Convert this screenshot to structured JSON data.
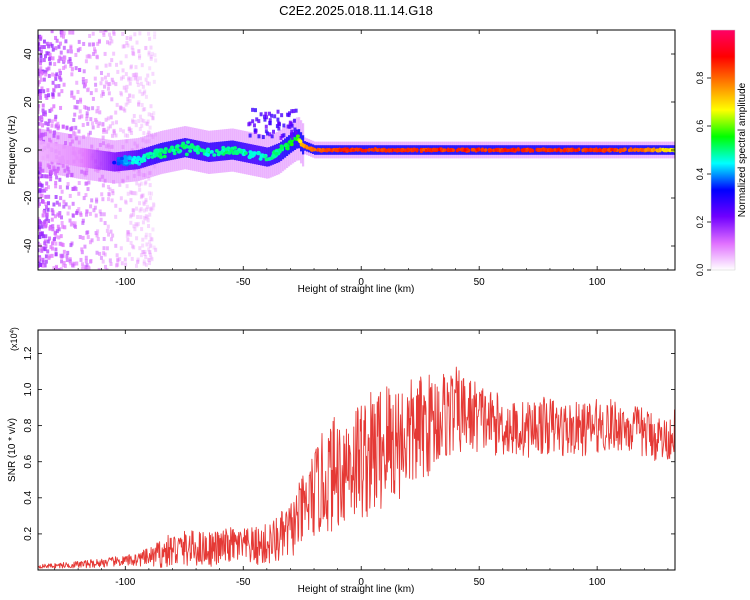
{
  "figure": {
    "title": "C2E2.2025.018.11.14.G18"
  },
  "chart_data": [
    {
      "type": "heatmap",
      "xlabel": "Height of straight line (km)",
      "ylabel": "Frequency (Hz)",
      "xlim": [
        -137,
        133
      ],
      "ylim": [
        -50,
        50
      ],
      "xticks": [
        -100,
        -50,
        0,
        50,
        100
      ],
      "yticks": [
        -40,
        -20,
        0,
        20,
        40
      ],
      "grid": false,
      "legend": "none",
      "colorbar": {
        "label": "Normalized spectral amplitude",
        "range": [
          0,
          1
        ],
        "ticks": [
          0.0,
          0.2,
          0.4,
          0.6,
          0.8
        ],
        "tick_labels": [
          "0.0",
          "0.2",
          "0.4",
          "0.6",
          "0.8"
        ],
        "colors": [
          "#ffffff",
          "#e070ff",
          "#7000ff",
          "#0000ff",
          "#00ffff",
          "#00ff00",
          "#ffff00",
          "#ff8000",
          "#ff0000",
          "#ff0066"
        ]
      },
      "ridge": {
        "x": [
          -137,
          -120,
          -105,
          -95,
          -85,
          -75,
          -65,
          -55,
          -45,
          -40,
          -35,
          -30,
          -27,
          -25,
          -20,
          -10,
          0,
          10,
          20,
          40,
          60,
          80,
          100,
          120,
          133
        ],
        "f": [
          0,
          -3,
          -5,
          -4,
          -1,
          1,
          -1,
          0,
          -2,
          -3,
          -1,
          3,
          5,
          2,
          0,
          0,
          0,
          0,
          0,
          0,
          0,
          0,
          0,
          0,
          0
        ],
        "amplitude": [
          0.1,
          0.15,
          0.35,
          0.45,
          0.5,
          0.5,
          0.48,
          0.5,
          0.45,
          0.48,
          0.5,
          0.55,
          0.55,
          0.75,
          0.8,
          0.85,
          0.85,
          0.85,
          0.85,
          0.85,
          0.85,
          0.85,
          0.85,
          0.8,
          0.65
        ]
      }
    },
    {
      "type": "line",
      "xlabel": "Height of straight line (km)",
      "ylabel": "SNR (10 * v/v)",
      "y_multiplier": "(x10",
      "y_multiplier_exp": "4",
      "y_multiplier_close": ")",
      "xlim": [
        -137,
        133
      ],
      "ylim": [
        0,
        1.33
      ],
      "xticks": [
        -100,
        -50,
        0,
        50,
        100
      ],
      "yticks": [
        0.2,
        0.4,
        0.6,
        0.8,
        1.0,
        1.2
      ],
      "ytick_labels": [
        "0.2",
        "0.4",
        "0.6",
        "0.8",
        "1.0",
        "1.2"
      ],
      "grid": false,
      "legend": "none",
      "color": "#e53935",
      "series": [
        {
          "x": [
            -137,
            -120,
            -100,
            -90,
            -85,
            -80,
            -75,
            -70,
            -65,
            -60,
            -55,
            -50,
            -45,
            -40,
            -35,
            -30,
            -25,
            -20,
            -15,
            -10,
            -5,
            0,
            5,
            10,
            15,
            20,
            25,
            30,
            35,
            40,
            45,
            50,
            55,
            60,
            65,
            70,
            75,
            80,
            85,
            90,
            95,
            100,
            105,
            110,
            115,
            120,
            125,
            130,
            133
          ],
          "mean": [
            0.02,
            0.03,
            0.05,
            0.07,
            0.09,
            0.11,
            0.12,
            0.12,
            0.12,
            0.12,
            0.14,
            0.13,
            0.13,
            0.14,
            0.17,
            0.22,
            0.32,
            0.42,
            0.5,
            0.55,
            0.6,
            0.62,
            0.64,
            0.7,
            0.72,
            0.74,
            0.78,
            0.82,
            0.86,
            0.88,
            0.86,
            0.85,
            0.82,
            0.8,
            0.78,
            0.78,
            0.8,
            0.8,
            0.78,
            0.78,
            0.78,
            0.8,
            0.8,
            0.8,
            0.78,
            0.76,
            0.74,
            0.72,
            0.78
          ],
          "amp": [
            0.01,
            0.02,
            0.03,
            0.05,
            0.08,
            0.1,
            0.1,
            0.1,
            0.1,
            0.1,
            0.1,
            0.1,
            0.11,
            0.12,
            0.14,
            0.16,
            0.2,
            0.25,
            0.3,
            0.33,
            0.34,
            0.35,
            0.36,
            0.38,
            0.35,
            0.32,
            0.3,
            0.28,
            0.26,
            0.25,
            0.22,
            0.2,
            0.18,
            0.17,
            0.16,
            0.16,
            0.16,
            0.16,
            0.16,
            0.15,
            0.15,
            0.15,
            0.15,
            0.14,
            0.14,
            0.14,
            0.14,
            0.12,
            0.12
          ]
        }
      ]
    }
  ]
}
